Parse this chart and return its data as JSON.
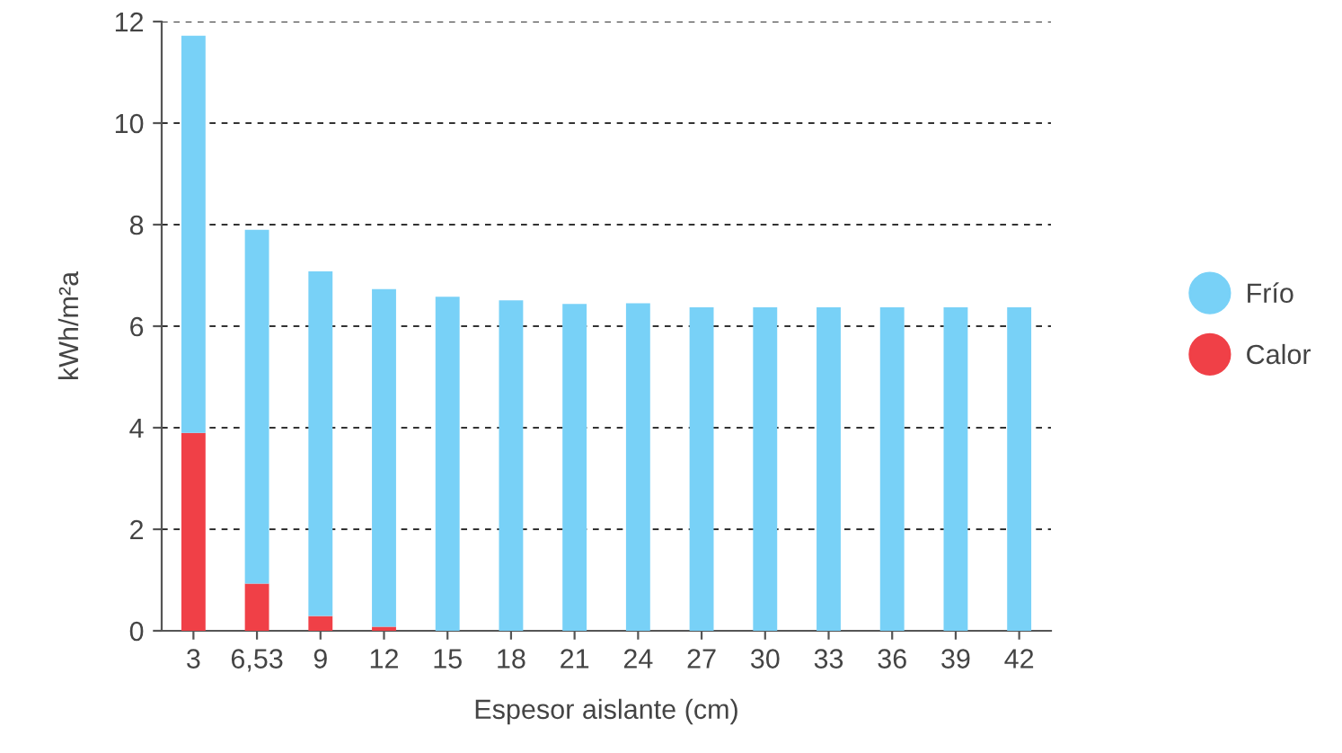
{
  "chart_data": {
    "type": "bar",
    "stacked": true,
    "xlabel": "Espesor aislante (cm)",
    "ylabel": "kWh/m²a",
    "categories": [
      "3",
      "6,53",
      "9",
      "12",
      "15",
      "18",
      "21",
      "24",
      "27",
      "30",
      "33",
      "36",
      "39",
      "42"
    ],
    "series": [
      {
        "name": "Calor",
        "color": "#f04047",
        "values": [
          3.9,
          0.93,
          0.29,
          0.08,
          0,
          0,
          0,
          0,
          0,
          0,
          0,
          0,
          0,
          0
        ]
      },
      {
        "name": "Frío",
        "color": "#78d1f7",
        "values": [
          7.82,
          6.97,
          6.79,
          6.65,
          6.58,
          6.51,
          6.44,
          6.45,
          6.37,
          6.37,
          6.37,
          6.37,
          6.37,
          6.37
        ]
      }
    ],
    "ylim": [
      0,
      12
    ],
    "yticks": [
      0,
      2,
      4,
      6,
      8,
      10,
      12
    ],
    "grid": "y",
    "legend": "right"
  }
}
